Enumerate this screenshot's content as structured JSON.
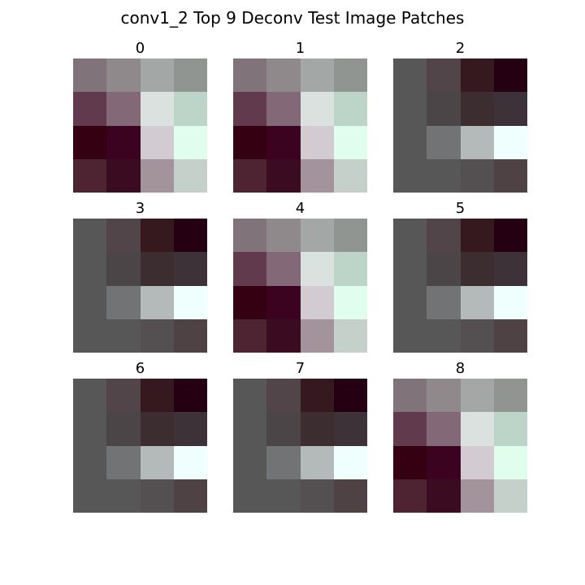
{
  "chart_data": {
    "type": "heatmap",
    "title": "conv1_2 Top 9 Deconv Test Image Patches",
    "panels": [
      {
        "label": "0",
        "pixels": [
          [
            "#80737a",
            "#8f898c",
            "#a3a7a6",
            "#909592"
          ],
          [
            "#613a4d",
            "#836877",
            "#dbe1df",
            "#bdd4c8"
          ],
          [
            "#340012",
            "#3c0321",
            "#d3cbd2",
            "#e1fdee"
          ],
          [
            "#4e2332",
            "#3a0b21",
            "#a3939b",
            "#c5d0ca"
          ]
        ]
      },
      {
        "label": "1",
        "pixels": [
          [
            "#80737a",
            "#8f898c",
            "#a3a7a6",
            "#909592"
          ],
          [
            "#613a4d",
            "#836877",
            "#dbe1df",
            "#bdd4c8"
          ],
          [
            "#340012",
            "#3c0321",
            "#d3cbd2",
            "#e1fdee"
          ],
          [
            "#4e2332",
            "#3a0b21",
            "#a3939b",
            "#c5d0ca"
          ]
        ]
      },
      {
        "label": "2",
        "pixels": [
          [
            "#575757",
            "#524549",
            "#35191f",
            "#250012"
          ],
          [
            "#575757",
            "#4c4547",
            "#3b2d30",
            "#3c3237"
          ],
          [
            "#575757",
            "#727374",
            "#b4bab9",
            "#eefffd"
          ],
          [
            "#575757",
            "#575757",
            "#545051",
            "#4e4244"
          ]
        ]
      },
      {
        "label": "3",
        "pixels": [
          [
            "#575757",
            "#524549",
            "#35191f",
            "#250012"
          ],
          [
            "#575757",
            "#4c4547",
            "#3b2d30",
            "#3c3237"
          ],
          [
            "#575757",
            "#727374",
            "#b4bab9",
            "#eefffd"
          ],
          [
            "#575757",
            "#575757",
            "#545051",
            "#4e4244"
          ]
        ]
      },
      {
        "label": "4",
        "pixels": [
          [
            "#80737a",
            "#8f898c",
            "#a3a7a6",
            "#909592"
          ],
          [
            "#613a4d",
            "#836877",
            "#dbe1df",
            "#bdd4c8"
          ],
          [
            "#340012",
            "#3c0321",
            "#d3cbd2",
            "#e1fdee"
          ],
          [
            "#4e2332",
            "#3a0b21",
            "#a3939b",
            "#c5d0ca"
          ]
        ]
      },
      {
        "label": "5",
        "pixels": [
          [
            "#575757",
            "#524549",
            "#35191f",
            "#250012"
          ],
          [
            "#575757",
            "#4c4547",
            "#3b2d30",
            "#3c3237"
          ],
          [
            "#575757",
            "#727374",
            "#b4bab9",
            "#eefffd"
          ],
          [
            "#575757",
            "#575757",
            "#545051",
            "#4e4244"
          ]
        ]
      },
      {
        "label": "6",
        "pixels": [
          [
            "#575757",
            "#524549",
            "#35191f",
            "#250012"
          ],
          [
            "#575757",
            "#4c4547",
            "#3b2d30",
            "#3c3237"
          ],
          [
            "#575757",
            "#727374",
            "#b4bab9",
            "#eefffd"
          ],
          [
            "#575757",
            "#575757",
            "#545051",
            "#4e4244"
          ]
        ]
      },
      {
        "label": "7",
        "pixels": [
          [
            "#575757",
            "#524549",
            "#35191f",
            "#250012"
          ],
          [
            "#575757",
            "#4c4547",
            "#3b2d30",
            "#3c3237"
          ],
          [
            "#575757",
            "#727374",
            "#b4bab9",
            "#eefffd"
          ],
          [
            "#575757",
            "#575757",
            "#545051",
            "#4e4244"
          ]
        ]
      },
      {
        "label": "8",
        "pixels": [
          [
            "#80737a",
            "#8f898c",
            "#a3a7a6",
            "#909592"
          ],
          [
            "#613a4d",
            "#836877",
            "#dbe1df",
            "#bdd4c8"
          ],
          [
            "#340012",
            "#3c0321",
            "#d3cbd2",
            "#e1fdee"
          ],
          [
            "#4e2332",
            "#3a0b21",
            "#a3939b",
            "#c5d0ca"
          ]
        ]
      }
    ]
  }
}
